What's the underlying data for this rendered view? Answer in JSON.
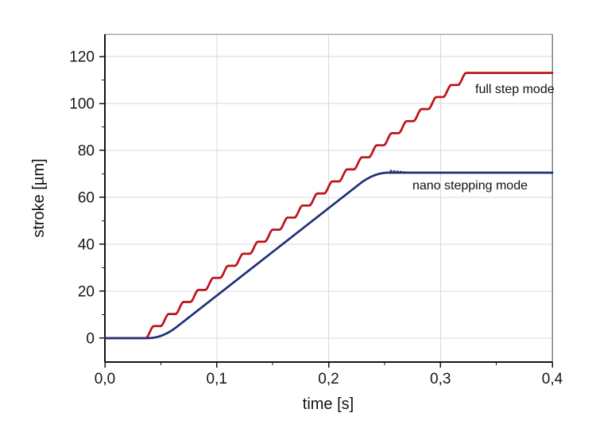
{
  "chart_data": {
    "type": "line",
    "title": "",
    "xlabel": "time [s]",
    "ylabel": "stroke [µm]",
    "xlim": [
      0,
      0.4
    ],
    "ylim": [
      -10.2,
      129.5
    ],
    "grid": {
      "enabled": true,
      "color": "#d9d9d9",
      "x_values": [
        0.1,
        0.2,
        0.3
      ],
      "y_values": [
        0,
        20,
        40,
        60,
        80,
        100,
        120
      ]
    },
    "x_ticks": {
      "major": [
        {
          "v": 0.0,
          "label": "0,0"
        },
        {
          "v": 0.1,
          "label": "0,1"
        },
        {
          "v": 0.2,
          "label": "0,2"
        },
        {
          "v": 0.3,
          "label": "0,3"
        },
        {
          "v": 0.4,
          "label": "0,4"
        }
      ],
      "minor": [
        0.05,
        0.15,
        0.25,
        0.35
      ]
    },
    "y_ticks": {
      "major": [
        {
          "v": 0,
          "label": "0"
        },
        {
          "v": 20,
          "label": "20"
        },
        {
          "v": 40,
          "label": "40"
        },
        {
          "v": 60,
          "label": "60"
        },
        {
          "v": 80,
          "label": "80"
        },
        {
          "v": 100,
          "label": "100"
        },
        {
          "v": 120,
          "label": "120"
        }
      ],
      "minor": [
        10,
        30,
        50,
        70,
        90,
        110
      ]
    },
    "frame_colors": {
      "left_bottom": "#141414",
      "top": "#a8a8a8",
      "right": "#7f7f7f"
    },
    "series": [
      {
        "id": "full_step",
        "name": "full step mode",
        "color": "#bd1118",
        "shape": "staircase",
        "flat_value": 0,
        "motion_start_s": 0.0365,
        "motion_end_s": 0.329,
        "plateau_value_um": 113,
        "steps": 22,
        "step_height_um": 5.14,
        "step_period_s": 0.0133,
        "rise_fraction": 0.55
      },
      {
        "id": "nano_stepping",
        "name": "nano stepping mode",
        "color": "#203077",
        "shape": "smooth-ramp",
        "flat_value": 0,
        "motion_start_s": 0.0385,
        "motion_end_s": 0.2535,
        "plateau_value_um": 70.5,
        "ease_fraction": 0.12,
        "settle_stipple": true,
        "stipple_start_s": 0.2555,
        "stipple_end_s": 0.2705
      }
    ],
    "annotations": [
      {
        "text": "full step mode",
        "series": "full_step"
      },
      {
        "text": "nano stepping mode",
        "series": "nano_stepping"
      }
    ]
  }
}
